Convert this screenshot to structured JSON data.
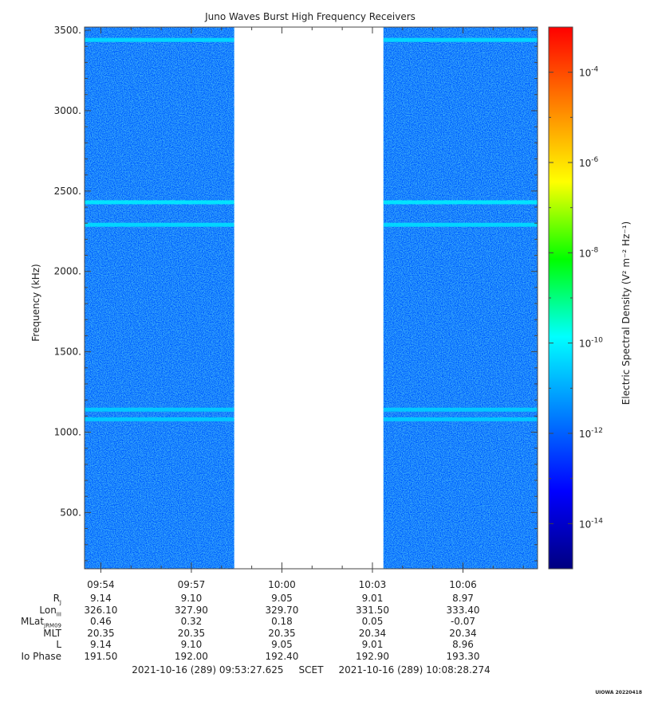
{
  "chart_data": {
    "type": "heatmap",
    "title": "Juno Waves Burst High Frequency Receivers",
    "xlabel": "",
    "ylabel": "Frequency (kHz)",
    "y_range_khz": [
      150,
      3520
    ],
    "y_ticks": [
      {
        "value": 500,
        "label": "500."
      },
      {
        "value": 1000,
        "label": "1000."
      },
      {
        "value": 1500,
        "label": "1500."
      },
      {
        "value": 2000,
        "label": "2000."
      },
      {
        "value": 2500,
        "label": "2500."
      },
      {
        "value": 3000,
        "label": "3000."
      },
      {
        "value": 3500,
        "label": "3500."
      }
    ],
    "x_range_utc": [
      "09:53:27.625",
      "10:08:28.274"
    ],
    "x_ticks": [
      {
        "time": "09:54",
        "label": "09:54"
      },
      {
        "time": "09:57",
        "label": "09:57"
      },
      {
        "time": "10:00",
        "label": "10:00"
      },
      {
        "time": "10:03",
        "label": "10:03"
      },
      {
        "time": "10:06",
        "label": "10:06"
      }
    ],
    "data_segments_utc": [
      [
        "09:53:27",
        "09:58:25"
      ],
      [
        "10:03:22",
        "10:08:28"
      ]
    ],
    "data_gap_utc": [
      "09:58:25",
      "10:03:22"
    ],
    "background_level": 1e-12,
    "emission_bands": [
      {
        "freq_khz": 1080,
        "level": 3e-11
      },
      {
        "freq_khz": 1140,
        "level": 3e-11
      },
      {
        "freq_khz": 2290,
        "level": 5e-11
      },
      {
        "freq_khz": 2430,
        "level": 8e-11
      },
      {
        "freq_khz": 3440,
        "level": 5e-11
      }
    ],
    "colorbar": {
      "label": "Electric Spectral Density (V² m⁻² Hz⁻¹)",
      "scale": "log",
      "range": [
        1e-15,
        0.001
      ],
      "ticks": [
        {
          "exp": "-4",
          "value": 0.0001
        },
        {
          "exp": "-6",
          "value": 1e-06
        },
        {
          "exp": "-8",
          "value": 1e-08
        },
        {
          "exp": "-10",
          "value": 1e-10
        },
        {
          "exp": "-12",
          "value": 1e-12
        },
        {
          "exp": "-14",
          "value": 1e-14
        }
      ],
      "colors": [
        "#000080",
        "#0000ff",
        "#0080ff",
        "#00ffff",
        "#00ff00",
        "#ffff00",
        "#ff8000",
        "#ff0000"
      ]
    }
  },
  "ephemeris": {
    "rows": [
      {
        "name": "R",
        "sub": "J",
        "values": [
          "9.14",
          "9.10",
          "9.05",
          "9.01",
          "8.97"
        ]
      },
      {
        "name": "Lon",
        "sub": "III",
        "values": [
          "326.10",
          "327.90",
          "329.70",
          "331.50",
          "333.40"
        ]
      },
      {
        "name": "MLat",
        "sub": "JRM09",
        "values": [
          "0.46",
          "0.32",
          "0.18",
          "0.05",
          "-0.07"
        ]
      },
      {
        "name": "MLT",
        "sub": "",
        "values": [
          "20.35",
          "20.35",
          "20.35",
          "20.34",
          "20.34"
        ]
      },
      {
        "name": "L",
        "sub": "",
        "values": [
          "9.14",
          "9.10",
          "9.05",
          "9.01",
          "8.96"
        ]
      },
      {
        "name": "Io Phase",
        "sub": "",
        "values": [
          "191.50",
          "192.00",
          "192.40",
          "192.90",
          "193.30"
        ]
      }
    ]
  },
  "footer": {
    "range_text": "2021-10-16 (289) 09:53:27.625     SCET     2021-10-16 (289) 10:08:28.274",
    "stamp": "UIOWA 20220418"
  }
}
